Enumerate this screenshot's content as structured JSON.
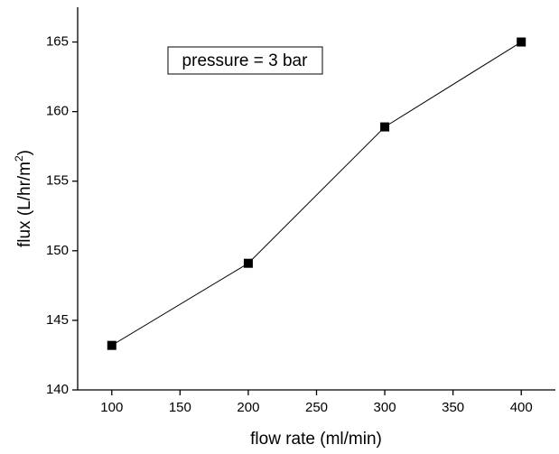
{
  "chart_data": {
    "type": "line",
    "x_label": "flow rate (ml/min)",
    "y_label": [
      "flux (L/hr/m",
      "2",
      ")"
    ],
    "annotation": "pressure = 3 bar",
    "x": [
      100,
      200,
      300,
      400
    ],
    "series": [
      {
        "color": "#000000",
        "values": [
          143.2,
          149.1,
          158.9,
          165
        ]
      }
    ],
    "xlim": [
      75,
      425
    ],
    "xticks": [
      100,
      150,
      200,
      250,
      300,
      350,
      400
    ],
    "ylim": [
      140,
      167.5
    ],
    "yticks": [
      140,
      145,
      150,
      155,
      160,
      165
    ],
    "grid": false,
    "marker": "square"
  }
}
